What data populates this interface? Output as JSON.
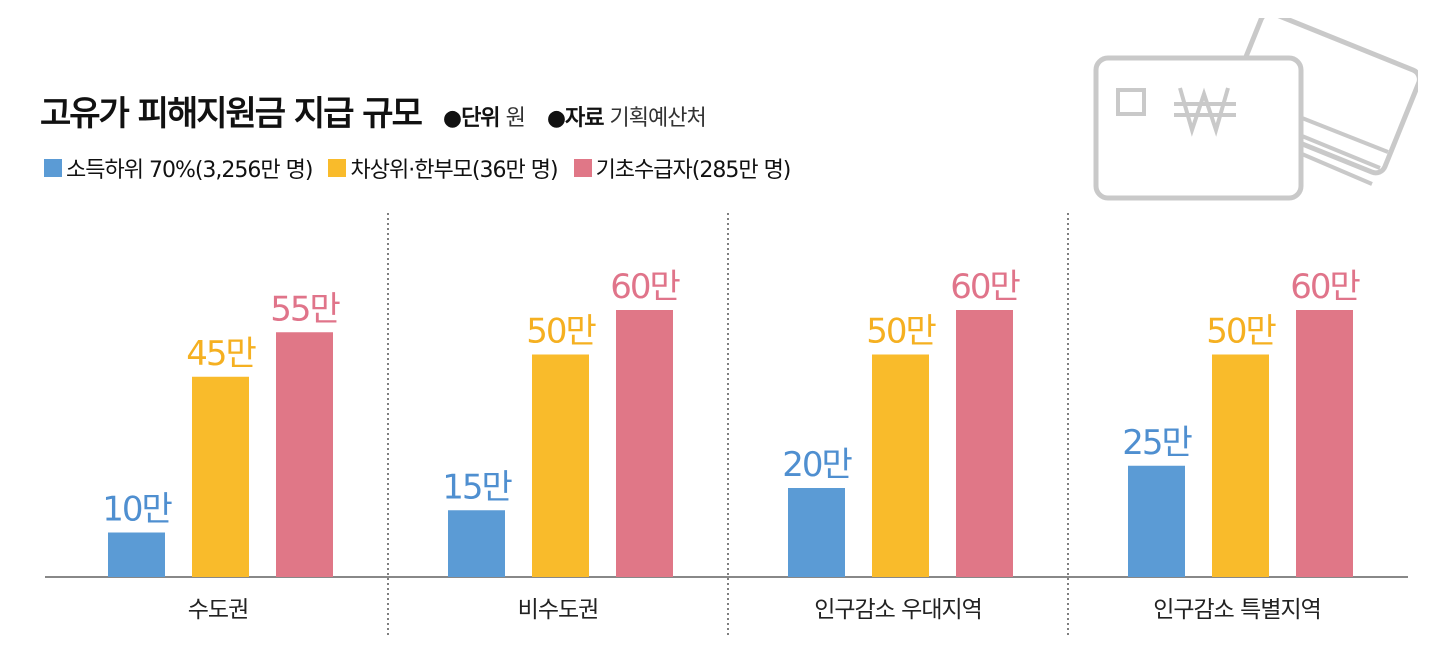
{
  "header": {
    "title": "고유가 피해지원금 지급 규모",
    "unit_label": "●단위",
    "unit_value": "원",
    "source_label": "●자료",
    "source_value": "기획예산처"
  },
  "colors": {
    "blue": "#5b9bd5",
    "yellow": "#f9bb2b",
    "pink": "#e07787"
  },
  "chart_data": {
    "type": "bar",
    "categories": [
      "수도권",
      "비수도권",
      "인구감소 우대지역",
      "인구감소 특별지역"
    ],
    "series": [
      {
        "name": "소득하위 70%(3,256만 명)",
        "color": "#5b9bd5",
        "label_color": "#4f8fd0",
        "values": [
          10,
          15,
          20,
          25
        ],
        "labels": [
          "10만",
          "15만",
          "20만",
          "25만"
        ]
      },
      {
        "name": "차상위·한부모(36만 명)",
        "color": "#f9bb2b",
        "label_color": "#f5b021",
        "values": [
          45,
          50,
          50,
          50
        ],
        "labels": [
          "45만",
          "50만",
          "50만",
          "50만"
        ]
      },
      {
        "name": "기초수급자(285만 명)",
        "color": "#e07787",
        "label_color": "#e0748a",
        "values": [
          55,
          60,
          60,
          60
        ],
        "labels": [
          "55만",
          "60만",
          "60만",
          "60만"
        ]
      }
    ],
    "ylim": [
      0,
      60
    ],
    "grid": false,
    "legend_position": "top-left"
  }
}
